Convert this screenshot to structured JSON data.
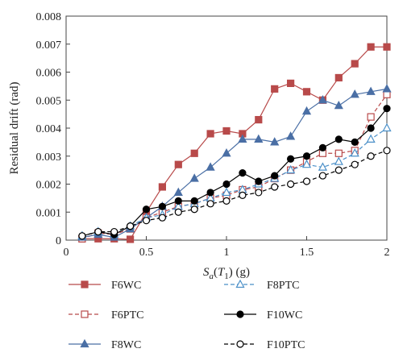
{
  "chart_data": {
    "type": "line",
    "xlabel": "S_a(T_1) (g)",
    "ylabel": "Residual drift (rad)",
    "xlim": [
      0,
      2
    ],
    "ylim": [
      0,
      0.008
    ],
    "x_ticks": [
      0,
      0.5,
      1,
      1.5,
      2
    ],
    "y_ticks": [
      0,
      0.001,
      0.002,
      0.003,
      0.004,
      0.005,
      0.006,
      0.007,
      0.008
    ],
    "x_tick_labels": [
      "0",
      "0.5",
      "1",
      "1.5",
      "2"
    ],
    "y_tick_labels": [
      "0",
      "0.001",
      "0.002",
      "0.003",
      "0.004",
      "0.005",
      "0.006",
      "0.007",
      "0.008"
    ],
    "grid": false,
    "legend_position": "bottom",
    "x": [
      0.1,
      0.2,
      0.3,
      0.4,
      0.5,
      0.6,
      0.7,
      0.8,
      0.9,
      1.0,
      1.1,
      1.2,
      1.3,
      1.4,
      1.5,
      1.6,
      1.7,
      1.8,
      1.9,
      2.0
    ],
    "series": [
      {
        "name": "F6WC",
        "color": "#b84a4a",
        "marker": "square-filled",
        "dash": "solid",
        "values": [
          5e-05,
          5e-05,
          5e-05,
          3e-05,
          0.001,
          0.0019,
          0.0027,
          0.0031,
          0.0038,
          0.0039,
          0.0038,
          0.0043,
          0.0054,
          0.0056,
          0.0053,
          0.005,
          0.0058,
          0.0063,
          0.0069,
          0.0069
        ]
      },
      {
        "name": "F6PTC",
        "color": "#b84a4a",
        "marker": "square-open",
        "dash": "dashed",
        "values": [
          5e-05,
          0.00025,
          0.0002,
          0.0004,
          0.0008,
          0.001,
          0.0012,
          0.0013,
          0.0015,
          0.0016,
          0.0018,
          0.0019,
          0.0022,
          0.0025,
          0.0028,
          0.0031,
          0.0031,
          0.0032,
          0.0044,
          0.0052
        ]
      },
      {
        "name": "F8WC",
        "color": "#4a6fa5",
        "marker": "triangle-filled",
        "dash": "solid",
        "values": [
          0.0001,
          0.0002,
          0.0001,
          0.0004,
          0.0008,
          0.0012,
          0.0017,
          0.0022,
          0.0026,
          0.0031,
          0.0036,
          0.0036,
          0.0035,
          0.0037,
          0.0046,
          0.005,
          0.0048,
          0.0052,
          0.0053,
          0.0054
        ]
      },
      {
        "name": "F8PTC",
        "color": "#4a8fc8",
        "marker": "triangle-open",
        "dash": "dashed",
        "values": [
          0.00015,
          0.0003,
          0.0002,
          0.0005,
          0.0008,
          0.0009,
          0.0012,
          0.0013,
          0.0015,
          0.0017,
          0.0018,
          0.002,
          0.0022,
          0.0025,
          0.0027,
          0.0026,
          0.0028,
          0.0031,
          0.0036,
          0.004
        ]
      },
      {
        "name": "F10WC",
        "color": "#000000",
        "marker": "circle-filled",
        "dash": "solid",
        "values": [
          0.00015,
          0.0003,
          0.0002,
          0.0005,
          0.0011,
          0.0012,
          0.0014,
          0.0014,
          0.0017,
          0.002,
          0.0024,
          0.0021,
          0.0023,
          0.0029,
          0.003,
          0.0033,
          0.0036,
          0.0035,
          0.004,
          0.0047
        ]
      },
      {
        "name": "F10PTC",
        "color": "#000000",
        "marker": "circle-open",
        "dash": "dashed",
        "values": [
          0.00015,
          0.0003,
          0.0003,
          0.0005,
          0.0007,
          0.0008,
          0.001,
          0.0011,
          0.0013,
          0.0014,
          0.0016,
          0.0017,
          0.0019,
          0.002,
          0.0021,
          0.0023,
          0.0025,
          0.0027,
          0.003,
          0.0032
        ]
      }
    ]
  }
}
